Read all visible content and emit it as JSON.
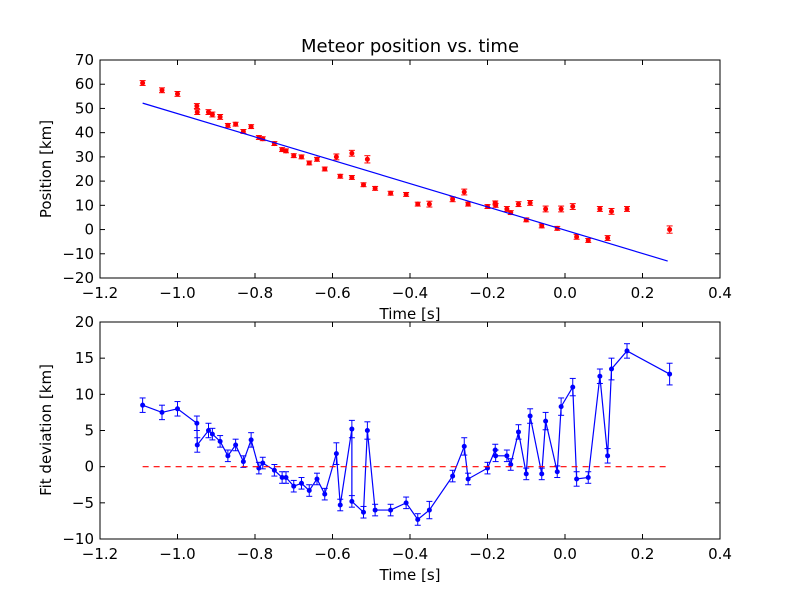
{
  "chart_data": [
    {
      "type": "scatter",
      "title": "Meteor position vs. time",
      "xlabel": "Time [s]",
      "ylabel": "Position [km]",
      "xlim": [
        -1.2,
        0.4
      ],
      "ylim": [
        -20,
        70
      ],
      "xticks": [
        "−1.2",
        "−1.0",
        "−0.8",
        "−0.6",
        "−0.4",
        "−0.2",
        "0.0",
        "0.2",
        "0.4"
      ],
      "yticks": [
        "−20",
        "−10",
        "0",
        "10",
        "20",
        "30",
        "40",
        "50",
        "60",
        "70"
      ],
      "grid": false,
      "series": [
        {
          "kind": "points-with-errorbars",
          "color": "#ff0000",
          "points": [
            [
              -1.09,
              60.5,
              1.0
            ],
            [
              -1.04,
              57.5,
              1.0
            ],
            [
              -1.0,
              56.0,
              1.0
            ],
            [
              -0.95,
              51.0,
              1.0
            ],
            [
              -0.949,
              48.5,
              1.0
            ],
            [
              -0.92,
              48.5,
              1.0
            ],
            [
              -0.91,
              47.5,
              1.0
            ],
            [
              -0.89,
              46.5,
              1.0
            ],
            [
              -0.87,
              43.0,
              0.8
            ],
            [
              -0.85,
              43.5,
              0.8
            ],
            [
              -0.83,
              40.5,
              0.8
            ],
            [
              -0.81,
              42.5,
              0.8
            ],
            [
              -0.79,
              38.0,
              0.8
            ],
            [
              -0.78,
              37.5,
              0.8
            ],
            [
              -0.75,
              35.5,
              0.8
            ],
            [
              -0.73,
              33.0,
              0.8
            ],
            [
              -0.72,
              32.5,
              0.8
            ],
            [
              -0.7,
              30.5,
              0.8
            ],
            [
              -0.68,
              30.0,
              0.8
            ],
            [
              -0.66,
              27.5,
              0.8
            ],
            [
              -0.64,
              29.0,
              0.8
            ],
            [
              -0.62,
              25.0,
              0.8
            ],
            [
              -0.59,
              30.0,
              1.2
            ],
            [
              -0.58,
              22.0,
              0.8
            ],
            [
              -0.55,
              31.5,
              1.2
            ],
            [
              -0.55,
              21.5,
              0.8
            ],
            [
              -0.52,
              18.5,
              0.8
            ],
            [
              -0.51,
              29.0,
              1.5
            ],
            [
              -0.49,
              17.0,
              0.8
            ],
            [
              -0.45,
              15.0,
              0.8
            ],
            [
              -0.41,
              14.5,
              0.8
            ],
            [
              -0.38,
              10.5,
              0.8
            ],
            [
              -0.35,
              10.5,
              1.2
            ],
            [
              -0.29,
              12.5,
              1.0
            ],
            [
              -0.26,
              15.5,
              1.2
            ],
            [
              -0.25,
              10.5,
              0.8
            ],
            [
              -0.2,
              9.5,
              0.8
            ],
            [
              -0.18,
              11.0,
              0.8
            ],
            [
              -0.179,
              10.0,
              0.8
            ],
            [
              -0.15,
              8.5,
              1.0
            ],
            [
              -0.14,
              7.0,
              0.8
            ],
            [
              -0.12,
              10.5,
              1.0
            ],
            [
              -0.1,
              4.0,
              0.8
            ],
            [
              -0.09,
              11.0,
              1.0
            ],
            [
              -0.06,
              1.5,
              0.8
            ],
            [
              -0.05,
              8.5,
              1.2
            ],
            [
              -0.02,
              0.5,
              0.8
            ],
            [
              -0.01,
              8.5,
              1.2
            ],
            [
              0.02,
              9.5,
              1.2
            ],
            [
              0.03,
              -3.0,
              1.0
            ],
            [
              0.06,
              -4.5,
              0.8
            ],
            [
              0.09,
              8.5,
              1.0
            ],
            [
              0.11,
              -3.5,
              1.0
            ],
            [
              0.12,
              7.5,
              1.2
            ],
            [
              0.16,
              8.5,
              1.0
            ],
            [
              0.27,
              0.0,
              1.5
            ]
          ]
        },
        {
          "kind": "fit-line",
          "color": "#0000ff",
          "x": [
            -1.09,
            0.265
          ],
          "y": [
            52.2,
            -13.0
          ]
        }
      ]
    },
    {
      "type": "line",
      "title": "",
      "xlabel": "Time [s]",
      "ylabel": "Fit deviation [km]",
      "xlim": [
        -1.2,
        0.4
      ],
      "ylim": [
        -10,
        20
      ],
      "xticks": [
        "−1.2",
        "−1.0",
        "−0.8",
        "−0.6",
        "−0.4",
        "−0.2",
        "0.0",
        "0.2",
        "0.4"
      ],
      "yticks": [
        "−10",
        "−5",
        "0",
        "5",
        "10",
        "15",
        "20"
      ],
      "grid": false,
      "series": [
        {
          "kind": "line-with-errorbars",
          "color": "#0000ff",
          "points": [
            [
              -1.09,
              8.5,
              1.0
            ],
            [
              -1.04,
              7.5,
              1.0
            ],
            [
              -1.0,
              8.0,
              1.0
            ],
            [
              -0.95,
              6.0,
              1.0
            ],
            [
              -0.949,
              3.0,
              1.0
            ],
            [
              -0.92,
              5.0,
              1.0
            ],
            [
              -0.91,
              4.5,
              0.8
            ],
            [
              -0.89,
              3.5,
              0.8
            ],
            [
              -0.87,
              1.5,
              0.8
            ],
            [
              -0.85,
              3.0,
              0.8
            ],
            [
              -0.83,
              0.7,
              0.8
            ],
            [
              -0.81,
              3.7,
              1.0
            ],
            [
              -0.79,
              -0.2,
              0.8
            ],
            [
              -0.78,
              0.5,
              0.8
            ],
            [
              -0.75,
              -0.5,
              0.8
            ],
            [
              -0.73,
              -1.5,
              0.8
            ],
            [
              -0.72,
              -1.5,
              0.8
            ],
            [
              -0.7,
              -2.7,
              0.8
            ],
            [
              -0.68,
              -2.3,
              0.8
            ],
            [
              -0.66,
              -3.3,
              0.8
            ],
            [
              -0.64,
              -1.7,
              0.8
            ],
            [
              -0.62,
              -3.8,
              0.8
            ],
            [
              -0.59,
              1.8,
              1.5
            ],
            [
              -0.58,
              -5.3,
              0.8
            ],
            [
              -0.55,
              5.2,
              1.2
            ],
            [
              -0.55,
              -4.8,
              0.8
            ],
            [
              -0.52,
              -6.3,
              0.8
            ],
            [
              -0.51,
              5.0,
              1.2
            ],
            [
              -0.49,
              -6.0,
              0.8
            ],
            [
              -0.45,
              -6.0,
              0.8
            ],
            [
              -0.41,
              -5.0,
              0.8
            ],
            [
              -0.38,
              -7.3,
              0.8
            ],
            [
              -0.35,
              -6.0,
              1.2
            ],
            [
              -0.29,
              -1.3,
              0.8
            ],
            [
              -0.26,
              2.8,
              1.2
            ],
            [
              -0.25,
              -1.7,
              0.8
            ],
            [
              -0.2,
              -0.2,
              0.8
            ],
            [
              -0.18,
              2.3,
              0.8
            ],
            [
              -0.179,
              1.5,
              0.8
            ],
            [
              -0.15,
              1.5,
              0.8
            ],
            [
              -0.14,
              0.3,
              0.8
            ],
            [
              -0.12,
              4.8,
              1.0
            ],
            [
              -0.1,
              -1.0,
              0.8
            ],
            [
              -0.09,
              7.0,
              1.0
            ],
            [
              -0.06,
              -1.0,
              0.8
            ],
            [
              -0.05,
              6.3,
              1.2
            ],
            [
              -0.02,
              -0.7,
              0.8
            ],
            [
              -0.01,
              8.3,
              1.2
            ],
            [
              0.02,
              11.0,
              1.2
            ],
            [
              0.03,
              -1.7,
              1.0
            ],
            [
              0.06,
              -1.5,
              0.8
            ],
            [
              0.09,
              12.5,
              1.0
            ],
            [
              0.11,
              1.5,
              1.0
            ],
            [
              0.12,
              13.5,
              1.5
            ],
            [
              0.16,
              16.0,
              1.0
            ],
            [
              0.27,
              12.8,
              1.5
            ]
          ]
        },
        {
          "kind": "zero-line",
          "color": "#ff0000",
          "style": "dashed",
          "x": [
            -1.09,
            0.27
          ],
          "y": [
            0,
            0
          ]
        }
      ]
    }
  ]
}
